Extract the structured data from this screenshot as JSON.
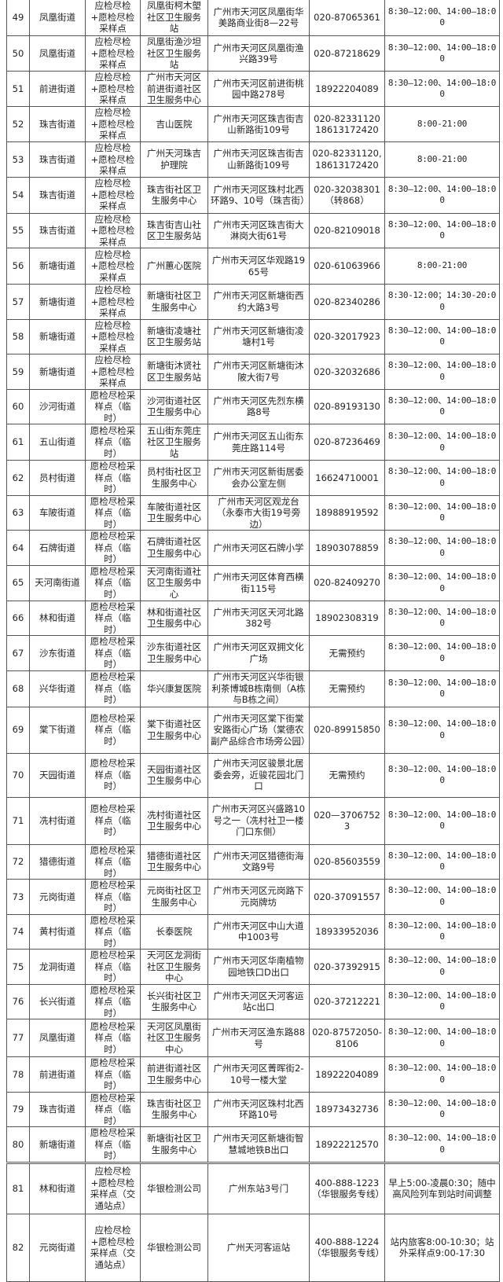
{
  "table": {
    "rows": [
      [
        "49",
        "凤凰街道",
        "应检尽检+愿检尽检采样点",
        "凤凰街柯木塱社区卫生服务站",
        "广州市天河区凤凰街华美路商业街8—22号",
        "020-87065361",
        "8:30—12:00、14:00—18:00"
      ],
      [
        "50",
        "凤凰街道",
        "应检尽检+愿检尽检采样点",
        "凤凰街渔沙坦社区卫生服务站",
        "广州市天河区凤凰街渔兴路39号",
        "020-87218629",
        "8:30—12:00、14:00—18:00"
      ],
      [
        "51",
        "前进街道",
        "应检尽检+愿检尽检采样点",
        "广州市天河区前进街道社区卫生服务中心",
        "广州市天河区前进街桃园中路278号",
        "18922204089",
        "8:30—12:00、14:00—18:00"
      ],
      [
        "52",
        "珠吉街道",
        "应检尽检+愿检尽检采样点",
        "吉山医院",
        "广州市天河区珠吉街吉山新路街109号",
        "020-82331120 18613172420",
        "8:00-21:00"
      ],
      [
        "53",
        "珠吉街道",
        "应检尽检+愿检尽检采样点",
        "广州天河珠吉护理院",
        "广州市天河区珠吉街吉山新路街109号",
        "020-82331120,18613172420",
        "8:00-21:00"
      ],
      [
        "54",
        "珠吉街道",
        "应检尽检+愿检尽检采样点",
        "珠吉街社区卫生服务中心",
        "广州市天河区珠村北西环路9、10号（珠吉街）",
        "020-32038301（转868）",
        "8:30—12:00、14:00—18:00"
      ],
      [
        "55",
        "珠吉街道",
        "应检尽检+愿检尽检采样点",
        "珠吉街吉山社区卫生服务站",
        "广州市天河区珠吉街大淋岗大街61号",
        "020-82109018",
        "8:30—12:00、14:00—18:00"
      ],
      [
        "56",
        "新塘街道",
        "应检尽检+愿检尽检采样点",
        "广州蕙心医院",
        "广州市天河区华观路1965号",
        "020-61063966",
        "8:00-21:00"
      ],
      [
        "57",
        "新塘街道",
        "应检尽检+愿检尽检采样点",
        "新塘街社区卫生服务中心",
        "广州市天河区新塘街西约大路3号",
        "020-82340286",
        "8:30-12:00；14:30-20:00"
      ],
      [
        "58",
        "新塘街道",
        "应检尽检+愿检尽检采样点",
        "新塘街凌塘社区卫生服务站",
        "广州市天河区新塘街凌塘村1号",
        "020-32017923",
        "8:30—12:00、14:00—18:00"
      ],
      [
        "59",
        "新塘街道",
        "应检尽检+愿检尽检采样点",
        "新塘街沐贤社区卫生服务站",
        "广州市天河区新塘街沐陂大街7号",
        "020-32032686",
        "8:30—12:00、14:00—18:00"
      ],
      [
        "60",
        "沙河街道",
        "愿检尽检采样点（临时）",
        "沙河街道社区卫生服务中心",
        "广州市天河区先烈东横路8号",
        "020-89193130",
        "8:30—12:00、14:00—18:00"
      ],
      [
        "61",
        "五山街道",
        "愿检尽检采样点（临时）",
        "五山街东莞庄社区卫生服务站",
        "广州市天河区五山街东莞庄路114号",
        "020-87236469",
        "8:30—12:00、14:00—18:00"
      ],
      [
        "62",
        "员村街道",
        "愿检尽检采样点（临时）",
        "员村街社区卫生服务中心",
        "广州市天河区新街居委会办公室左侧",
        "16624710001",
        "8:30—12:00、14:00—18:00"
      ],
      [
        "63",
        "车陂街道",
        "愿检尽检采样点（临时）",
        "车陂街道社区卫生服务中心",
        "广州市天河区观龙台（永泰市大街19号旁边）",
        "18988919592",
        "8:30—12:00、14:00—18:00"
      ],
      [
        "64",
        "石牌街道",
        "愿检尽检采样点（临时）",
        "石牌街道社区卫生服务中心",
        "广州市天河区石牌小学",
        "18903078859",
        "8:30—12:00、14:00—18:00"
      ],
      [
        "65",
        "天河南街道",
        "愿检尽检采样点（临时）",
        "天河南街道社区卫生服务中心",
        "广州市天河区体育西横街115号",
        "020-82409270",
        "8:30—12:00、14:00—18:00"
      ],
      [
        "66",
        "林和街道",
        "愿检尽检采样点（临时）",
        "林和街道社区卫生服务中心",
        "广州市天河区天河北路382号",
        "18902308319",
        "8:30—12:00、14:00—18:00"
      ],
      [
        "67",
        "沙东街道",
        "愿检尽检采样点（临时）",
        "沙东街道社区卫生服务中心",
        "广州市天河区双拥文化广场",
        "无需预约",
        "8:30—12:00、14:00—18:00"
      ],
      [
        "68",
        "兴华街道",
        "愿检尽检采样点（临时）",
        "华兴康复医院",
        "广州市天河区兴华街银利茶博城B栋南侧（A栋与B栋之间）",
        "无需预约",
        "8:30—12:00、14:00—18:00"
      ],
      [
        "69",
        "棠下街道",
        "愿检尽检采样点（临时）",
        "棠下街道社区卫生服务中心",
        "广州市天河区棠下街棠安路街心广场（棠德农副产品综合市场旁公园）",
        "020-89915850",
        "8:30—12:00、14:00—18:00"
      ],
      [
        "70",
        "天园街道",
        "愿检尽检采样点（临时）",
        "天园街道社区卫生服务中心",
        "广州市天河区骏景北居委会旁，近骏花园北门口",
        "无需预约",
        "8:30—12:00、14:00—18:00"
      ],
      [
        "71",
        "冼村街道",
        "愿检尽检采样点（临时）",
        "冼村街道社区卫生服务中心",
        "广州市天河区兴盛路10号之一（冼村社卫一楼门口东侧）",
        "020—37067523",
        "8:30—12:00、14:00—18:00"
      ],
      [
        "72",
        "猎德街道",
        "愿检尽检采样点（临时）",
        "猎德街道社区卫生服务中心",
        "广州市天河区猎德街海文路9号",
        "020-85603559",
        "8:30—12:00、14:00—18:00"
      ],
      [
        "73",
        "元岗街道",
        "愿检尽检采样点（临时）",
        "元岗街社区卫生服务中心",
        "广州市天河区元岗路下元岗牌坊",
        "020-37091557",
        "8:30—12:00、14:00—18:00"
      ],
      [
        "74",
        "黄村街道",
        "愿检尽检采样点（临时）",
        "长泰医院",
        "广州市天河区中山大道中1003号",
        "18933952036",
        "8:30—12:00、14:00—18:00"
      ],
      [
        "75",
        "龙洞街道",
        "愿检尽检采样点（临时）",
        "天河区龙洞街社区卫生服务中心",
        "广州市天河区华南植物园地铁口D出口",
        "020-37392915",
        "8:30—12:00、14:00—18:00"
      ],
      [
        "76",
        "长兴街道",
        "愿检尽检采样点（临时）",
        "长兴街社区卫生服务中心",
        "广州市天河区天河客运站c出口",
        "020-37212221",
        "8:30—12:00、14:00—18:00"
      ],
      [
        "77",
        "凤凰街道",
        "愿检尽检采样点（临时）",
        "天河区凤凰街社区卫生服务中心",
        "广州市天河区渔东路88号",
        "020-87572050-8106",
        "8:30—12:00、14:00—18:00"
      ],
      [
        "78",
        "前进街道",
        "愿检尽检采样点（临时）",
        "前进街道社区卫生服务中心",
        "广州市天河区菁晖街2-10号一楼大堂",
        "18922204089",
        "8:30—12:00、14:00—18:00"
      ],
      [
        "79",
        "珠吉街道",
        "愿检尽检采样点（临时）",
        "珠吉街社区卫生服务中心",
        "广州市天河区珠村北西环路10号",
        "18973432736",
        "8:30—12:00、14:00—18:00"
      ],
      [
        "80",
        "新塘街道",
        "愿检尽检采样点（临时）",
        "新塘街社区卫生服务中心",
        "广州市天河区新塘街智慧城地铁B出口",
        "18922212570",
        "8:30—12:00、14:00—18:00"
      ],
      [
        "81",
        "林和街道",
        "应检尽检+愿检尽检采样点（交通站点）",
        "华银检测公司",
        "广州东站3号门",
        "400-888-1223（华银服务专线）",
        "早上5:00-凌晨0:30；随中高风险列车到站时间调整"
      ],
      [
        "82",
        "元岗街道",
        "应检尽检+愿检尽检采样点（交通站点）",
        "华银检测公司",
        "广州天河客运站",
        "400-888-1224（华银服务专线）",
        "站内旅客8:00-10:30；站外采样点9:00-17:30"
      ]
    ]
  }
}
